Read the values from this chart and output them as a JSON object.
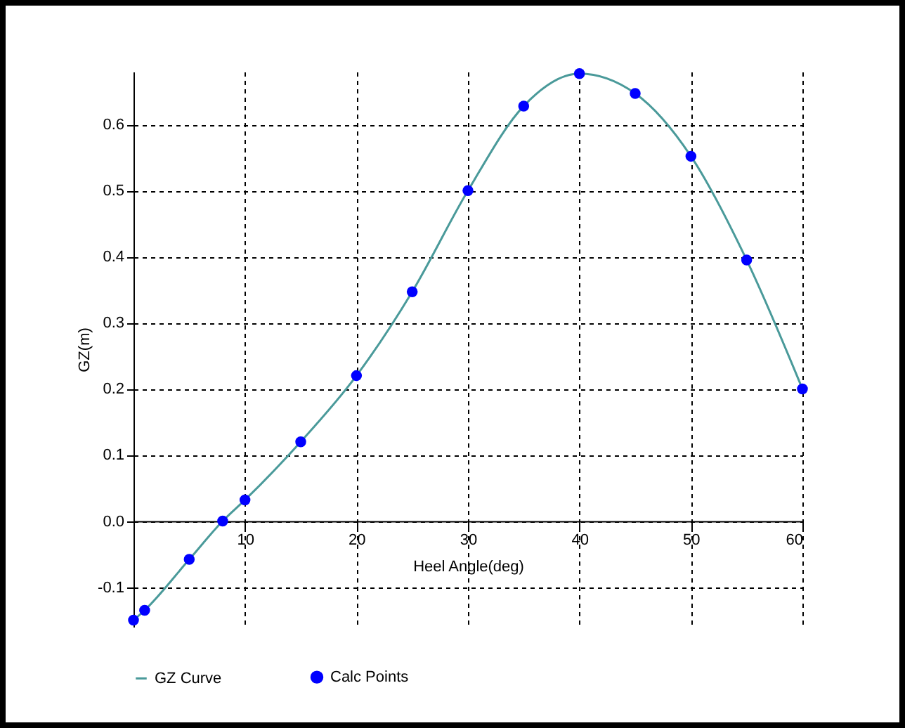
{
  "chart_data": {
    "type": "line",
    "xlabel": "Heel Angle(deg)",
    "ylabel": "GZ(m)",
    "xlim": [
      0,
      60
    ],
    "xticks": [
      10,
      20,
      30,
      40,
      50,
      60
    ],
    "ylim": [
      -0.16,
      0.68
    ],
    "yticks": [
      {
        "value": -0.1,
        "label": "-0.1"
      },
      {
        "value": 0,
        "label": "0.0"
      },
      {
        "value": 0.1,
        "label": "0.1"
      },
      {
        "value": 0.2,
        "label": "0.2"
      },
      {
        "value": 0.3,
        "label": "0.3"
      },
      {
        "value": 0.4,
        "label": "0.4"
      },
      {
        "value": 0.5,
        "label": "0.5"
      },
      {
        "value": 0.6,
        "label": "0.6"
      }
    ],
    "grid": true,
    "legend": "bottom left",
    "series": [
      {
        "name": "GZ Curve",
        "color": "#4a9a9a",
        "marker": "none",
        "x": [
          0,
          1,
          5,
          8,
          10,
          15,
          20,
          25,
          30,
          35,
          40,
          45,
          50,
          55,
          60
        ],
        "values": [
          -0.15,
          -0.135,
          -0.058,
          0.0,
          0.032,
          0.12,
          0.22,
          0.347,
          0.5,
          0.628,
          0.677,
          0.647,
          0.552,
          0.395,
          0.2
        ]
      },
      {
        "name": "Calc Points",
        "type": "scatter",
        "color": "#0000ff",
        "marker": "circle",
        "x": [
          0,
          1,
          5,
          8,
          10,
          15,
          20,
          25,
          30,
          35,
          40,
          45,
          50,
          55,
          60
        ],
        "values": [
          -0.15,
          -0.135,
          -0.058,
          0.0,
          0.032,
          0.12,
          0.22,
          0.347,
          0.5,
          0.628,
          0.677,
          0.647,
          0.552,
          0.395,
          0.2
        ]
      }
    ]
  }
}
